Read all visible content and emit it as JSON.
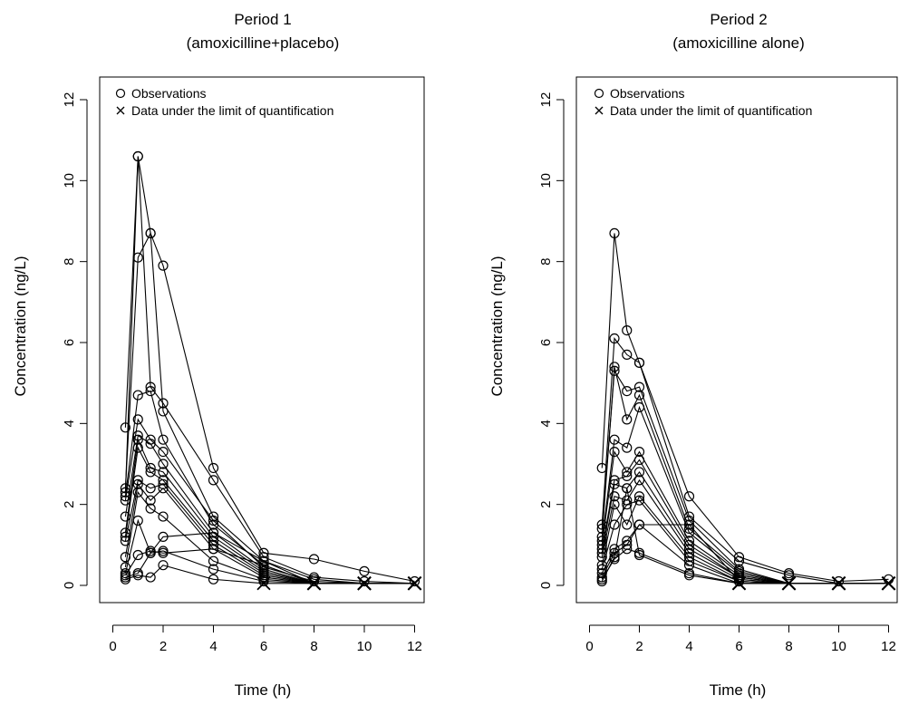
{
  "figure": {
    "ylabel": "Concentration (ng/L)",
    "xlabel": "Time (h)"
  },
  "legend": {
    "observations": "Observations",
    "blq": "Data under the limit of quantification"
  },
  "chart_data": [
    {
      "type": "line",
      "title": "Period 1",
      "subtitle": "(amoxicilline+placebo)",
      "xlabel": "Time (h)",
      "ylabel": "Concentration (ng/L)",
      "xlim": [
        0,
        12
      ],
      "ylim": [
        0,
        12
      ],
      "xticks": [
        0,
        2,
        4,
        6,
        8,
        10,
        12
      ],
      "yticks": [
        0,
        2,
        4,
        6,
        8,
        10,
        12
      ],
      "grid": false,
      "legend_position": "top-left",
      "x": [
        0.5,
        1,
        1.5,
        2,
        4,
        6,
        8,
        10,
        12
      ],
      "series": [
        {
          "values": [
            3.9,
            10.6,
            8.7,
            7.9,
            2.9,
            0.8,
            0.65,
            0.35,
            0.1
          ],
          "blq": [
            false,
            false,
            false,
            false,
            false,
            false,
            false,
            false,
            false
          ]
        },
        {
          "values": [
            2.3,
            10.6,
            4.9,
            4.5,
            2.6,
            0.7,
            0.2,
            0.1,
            0.05
          ],
          "blq": [
            false,
            false,
            false,
            false,
            false,
            false,
            false,
            false,
            true
          ]
        },
        {
          "values": [
            2.4,
            8.1,
            8.7,
            4.3,
            1.7,
            0.6,
            0.15,
            0.05,
            0.05
          ],
          "blq": [
            false,
            false,
            false,
            false,
            false,
            false,
            false,
            true,
            true
          ]
        },
        {
          "values": [
            2.2,
            4.7,
            4.8,
            3.6,
            1.5,
            0.5,
            0.05,
            0.05,
            0.05
          ],
          "blq": [
            false,
            false,
            false,
            false,
            false,
            false,
            true,
            true,
            true
          ]
        },
        {
          "values": [
            2.1,
            4.1,
            3.6,
            3.3,
            1.6,
            0.45,
            0.1,
            0.05,
            0.05
          ],
          "blq": [
            false,
            false,
            false,
            false,
            false,
            false,
            false,
            true,
            true
          ]
        },
        {
          "values": [
            1.7,
            3.7,
            3.5,
            3.0,
            1.3,
            0.4,
            0.05,
            0.05,
            0.05
          ],
          "blq": [
            false,
            false,
            false,
            false,
            false,
            false,
            true,
            true,
            true
          ]
        },
        {
          "values": [
            1.3,
            3.6,
            2.9,
            2.8,
            1.2,
            0.35,
            0.05,
            0.05,
            0.05
          ],
          "blq": [
            false,
            false,
            false,
            false,
            false,
            false,
            true,
            true,
            true
          ]
        },
        {
          "values": [
            1.2,
            3.4,
            2.8,
            2.6,
            1.1,
            0.3,
            0.05,
            0.05,
            0.05
          ],
          "blq": [
            false,
            false,
            false,
            false,
            false,
            false,
            true,
            true,
            true
          ]
        },
        {
          "values": [
            1.1,
            2.6,
            2.4,
            2.5,
            1.0,
            0.25,
            0.05,
            0.05,
            0.05
          ],
          "blq": [
            false,
            false,
            false,
            false,
            false,
            false,
            true,
            true,
            true
          ]
        },
        {
          "values": [
            0.7,
            2.5,
            2.1,
            2.4,
            0.9,
            0.2,
            0.05,
            0.05,
            0.05
          ],
          "blq": [
            false,
            false,
            false,
            false,
            false,
            false,
            true,
            true,
            true
          ]
        },
        {
          "values": [
            0.45,
            2.3,
            1.9,
            1.7,
            0.6,
            0.15,
            0.05,
            0.05,
            0.05
          ],
          "blq": [
            false,
            false,
            false,
            false,
            false,
            false,
            true,
            true,
            true
          ]
        },
        {
          "values": [
            0.3,
            1.6,
            0.8,
            1.2,
            1.3,
            0.6,
            0.05,
            0.05,
            0.05
          ],
          "blq": [
            false,
            false,
            false,
            false,
            false,
            false,
            true,
            true,
            true
          ]
        },
        {
          "values": [
            0.25,
            0.75,
            0.85,
            0.8,
            0.9,
            0.5,
            0.05,
            0.05,
            0.05
          ],
          "blq": [
            false,
            false,
            false,
            false,
            false,
            false,
            true,
            true,
            true
          ]
        },
        {
          "values": [
            0.2,
            0.3,
            0.8,
            0.85,
            0.4,
            0.1,
            0.05,
            0.05,
            0.05
          ],
          "blq": [
            false,
            false,
            false,
            false,
            false,
            false,
            true,
            true,
            true
          ]
        },
        {
          "values": [
            0.15,
            0.25,
            0.2,
            0.5,
            0.15,
            0.05,
            0.05,
            0.05,
            0.05
          ],
          "blq": [
            false,
            false,
            false,
            false,
            false,
            true,
            true,
            true,
            true
          ]
        }
      ]
    },
    {
      "type": "line",
      "title": "Period 2",
      "subtitle": "(amoxicilline alone)",
      "xlabel": "Time (h)",
      "ylabel": "Concentration (ng/L)",
      "xlim": [
        0,
        12
      ],
      "ylim": [
        0,
        12
      ],
      "xticks": [
        0,
        2,
        4,
        6,
        8,
        10,
        12
      ],
      "yticks": [
        0,
        2,
        4,
        6,
        8,
        10,
        12
      ],
      "grid": false,
      "legend_position": "top-left",
      "x": [
        0.5,
        1,
        1.5,
        2,
        4,
        6,
        8,
        10,
        12
      ],
      "series": [
        {
          "values": [
            2.9,
            8.7,
            6.3,
            5.5,
            2.2,
            0.7,
            0.3,
            0.1,
            0.15
          ],
          "blq": [
            false,
            false,
            false,
            false,
            false,
            false,
            false,
            false,
            false
          ]
        },
        {
          "values": [
            1.5,
            6.1,
            5.7,
            5.5,
            1.7,
            0.6,
            0.25,
            0.05,
            0.05
          ],
          "blq": [
            false,
            false,
            false,
            false,
            false,
            false,
            false,
            true,
            true
          ]
        },
        {
          "values": [
            1.4,
            5.3,
            4.8,
            4.9,
            1.6,
            0.4,
            0.05,
            0.05,
            0.05
          ],
          "blq": [
            false,
            false,
            false,
            false,
            false,
            false,
            true,
            true,
            true
          ]
        },
        {
          "values": [
            1.2,
            5.4,
            4.1,
            4.7,
            1.4,
            0.35,
            0.05,
            0.05,
            0.05
          ],
          "blq": [
            false,
            false,
            false,
            false,
            false,
            false,
            true,
            true,
            true
          ]
        },
        {
          "values": [
            1.1,
            3.6,
            3.4,
            4.4,
            1.3,
            0.3,
            0.05,
            0.05,
            0.05
          ],
          "blq": [
            false,
            false,
            false,
            false,
            false,
            false,
            true,
            true,
            true
          ]
        },
        {
          "values": [
            1.0,
            3.3,
            2.8,
            3.3,
            1.1,
            0.25,
            0.05,
            0.05,
            0.05
          ],
          "blq": [
            false,
            false,
            false,
            false,
            false,
            false,
            true,
            true,
            true
          ]
        },
        {
          "values": [
            0.9,
            2.6,
            2.7,
            3.1,
            1.0,
            0.2,
            0.05,
            0.05,
            0.05
          ],
          "blq": [
            false,
            false,
            false,
            false,
            false,
            false,
            true,
            true,
            true
          ]
        },
        {
          "values": [
            0.8,
            2.5,
            2.4,
            2.8,
            0.9,
            0.2,
            0.05,
            0.05,
            0.05
          ],
          "blq": [
            false,
            false,
            false,
            false,
            false,
            false,
            true,
            true,
            true
          ]
        },
        {
          "values": [
            0.7,
            2.2,
            2.1,
            2.6,
            0.8,
            0.15,
            0.05,
            0.05,
            0.05
          ],
          "blq": [
            false,
            false,
            false,
            false,
            false,
            false,
            true,
            true,
            true
          ]
        },
        {
          "values": [
            0.5,
            2.0,
            1.5,
            2.2,
            0.7,
            0.1,
            0.05,
            0.05,
            0.05
          ],
          "blq": [
            false,
            false,
            false,
            false,
            false,
            false,
            true,
            true,
            true
          ]
        },
        {
          "values": [
            0.4,
            1.5,
            2.0,
            2.1,
            0.6,
            0.1,
            0.05,
            0.05,
            0.05
          ],
          "blq": [
            false,
            false,
            false,
            false,
            false,
            false,
            true,
            true,
            true
          ]
        },
        {
          "values": [
            0.3,
            0.9,
            1.1,
            1.5,
            1.5,
            0.1,
            0.05,
            0.05,
            0.05
          ],
          "blq": [
            false,
            false,
            false,
            false,
            false,
            false,
            true,
            true,
            true
          ]
        },
        {
          "values": [
            0.2,
            0.8,
            1.0,
            1.5,
            0.5,
            0.05,
            0.05,
            0.05,
            0.05
          ],
          "blq": [
            false,
            false,
            false,
            false,
            false,
            true,
            true,
            true,
            true
          ]
        },
        {
          "values": [
            0.15,
            0.65,
            0.9,
            0.8,
            0.3,
            0.05,
            0.05,
            0.05,
            0.05
          ],
          "blq": [
            false,
            false,
            false,
            false,
            false,
            true,
            true,
            true,
            true
          ]
        },
        {
          "values": [
            0.1,
            0.7,
            2.4,
            0.75,
            0.25,
            0.05,
            0.05,
            0.05,
            0.05
          ],
          "blq": [
            false,
            false,
            false,
            false,
            false,
            true,
            true,
            true,
            true
          ]
        }
      ]
    }
  ]
}
